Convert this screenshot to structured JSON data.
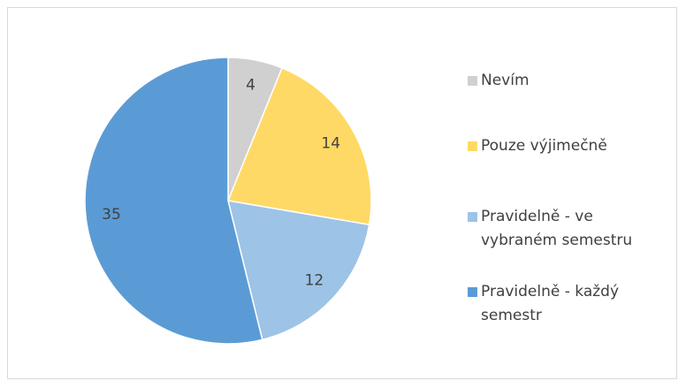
{
  "chart_data": {
    "type": "pie",
    "categories": [
      "Nevím",
      "Pouze výjimečně",
      "Pravidelně - ve vybraném semestru",
      "Pravidelně - každý semestr"
    ],
    "values": [
      4,
      14,
      12,
      35
    ],
    "colors": [
      "#d0d0d0",
      "#ffd966",
      "#9dc3e6",
      "#5b9bd5"
    ],
    "legend": "right"
  }
}
